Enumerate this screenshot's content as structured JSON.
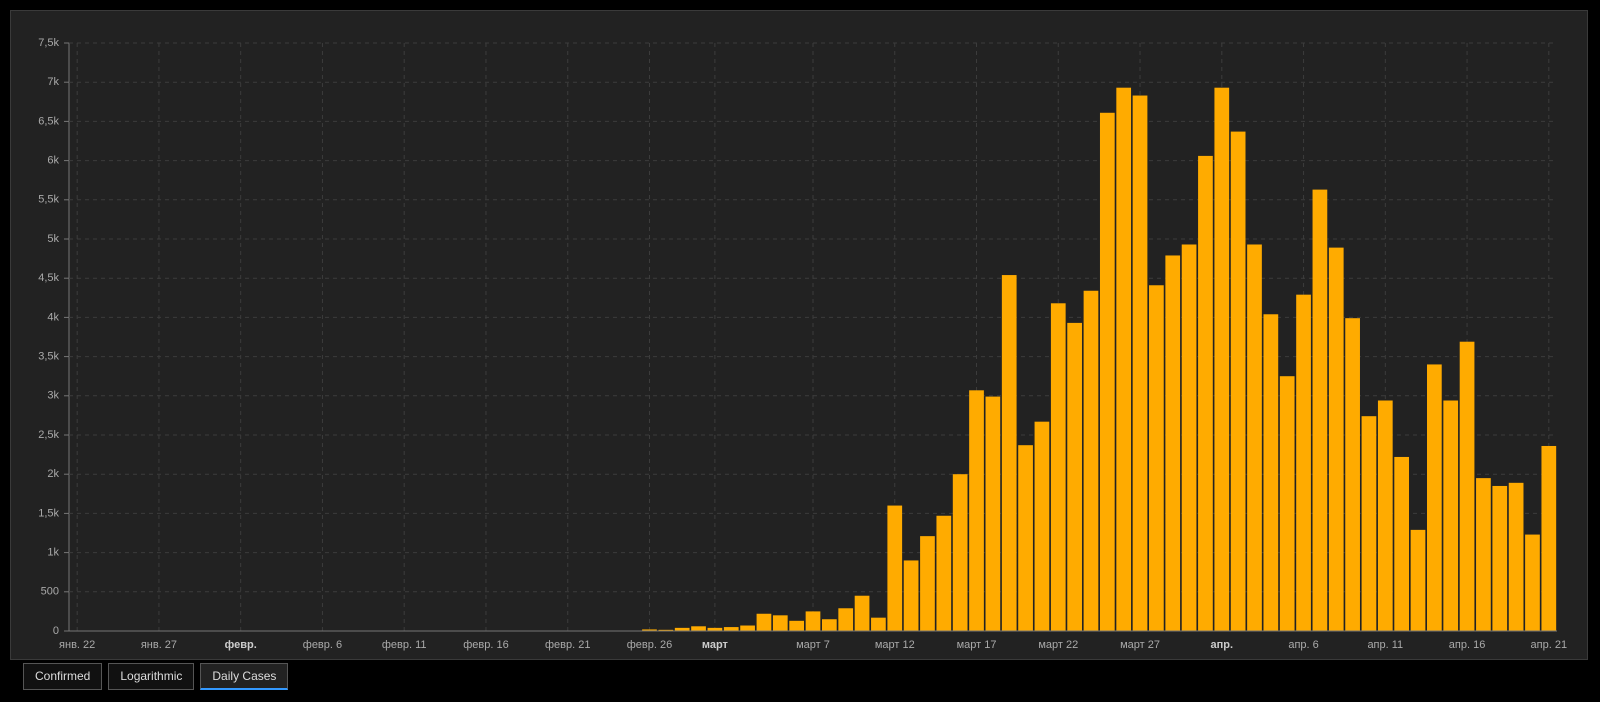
{
  "chart_data": {
    "type": "bar",
    "color": "#ffab00",
    "grid": true,
    "categories": [
      "янв. 22",
      null,
      null,
      null,
      null,
      "янв. 27",
      null,
      null,
      null,
      null,
      "февр.",
      null,
      null,
      null,
      null,
      "февр. 6",
      null,
      null,
      null,
      null,
      "февр. 11",
      null,
      null,
      null,
      null,
      "февр. 16",
      null,
      null,
      null,
      null,
      "февр. 21",
      null,
      null,
      null,
      null,
      "февр. 26",
      null,
      null,
      null,
      "март",
      null,
      null,
      null,
      null,
      null,
      "март 7",
      null,
      null,
      null,
      null,
      "март 12",
      null,
      null,
      null,
      null,
      "март 17",
      null,
      null,
      null,
      null,
      "март 22",
      null,
      null,
      null,
      null,
      "март 27",
      null,
      null,
      null,
      null,
      "апр.",
      null,
      null,
      null,
      null,
      "апр. 6",
      null,
      null,
      null,
      null,
      "апр. 11",
      null,
      null,
      null,
      null,
      "апр. 16",
      null,
      null,
      null,
      null,
      "апр. 21"
    ],
    "values": [
      0,
      0,
      0,
      0,
      0,
      1,
      3,
      0,
      1,
      3,
      0,
      0,
      1,
      0,
      3,
      0,
      0,
      1,
      0,
      0,
      0,
      0,
      0,
      0,
      0,
      0,
      0,
      0,
      2,
      1,
      2,
      0,
      0,
      0,
      3,
      20,
      15,
      40,
      60,
      40,
      50,
      70,
      220,
      200,
      130,
      250,
      150,
      290,
      450,
      170,
      1600,
      900,
      1210,
      1470,
      2000,
      3070,
      2990,
      4540,
      2370,
      2670,
      4180,
      3930,
      4340,
      6610,
      6930,
      6830,
      4410,
      4790,
      4930,
      6060,
      6930,
      6370,
      4930,
      4040,
      3250,
      4290,
      5630,
      4890,
      3990,
      2740,
      2940,
      2220,
      1290,
      3400,
      2940,
      3690,
      1950,
      1850,
      1890,
      1230,
      2360
    ],
    "ylim": [
      0,
      7500
    ],
    "yticks": [
      0,
      500,
      {
        "value": 1000,
        "label": "1k"
      },
      {
        "value": 1500,
        "label": "1,5k"
      },
      {
        "value": 2000,
        "label": "2k"
      },
      {
        "value": 2500,
        "label": "2,5k"
      },
      {
        "value": 3000,
        "label": "3k"
      },
      {
        "value": 3500,
        "label": "3,5k"
      },
      {
        "value": 4000,
        "label": "4k"
      },
      {
        "value": 4500,
        "label": "4,5k"
      },
      {
        "value": 5000,
        "label": "5k"
      },
      {
        "value": 5500,
        "label": "5,5k"
      },
      {
        "value": 6000,
        "label": "6k"
      },
      {
        "value": 6500,
        "label": "6,5k"
      },
      {
        "value": 7000,
        "label": "7k"
      },
      {
        "value": 7500,
        "label": "7,5k"
      }
    ]
  },
  "buttons": [
    "Confirmed",
    "Logarithmic",
    "Daily Cases"
  ]
}
